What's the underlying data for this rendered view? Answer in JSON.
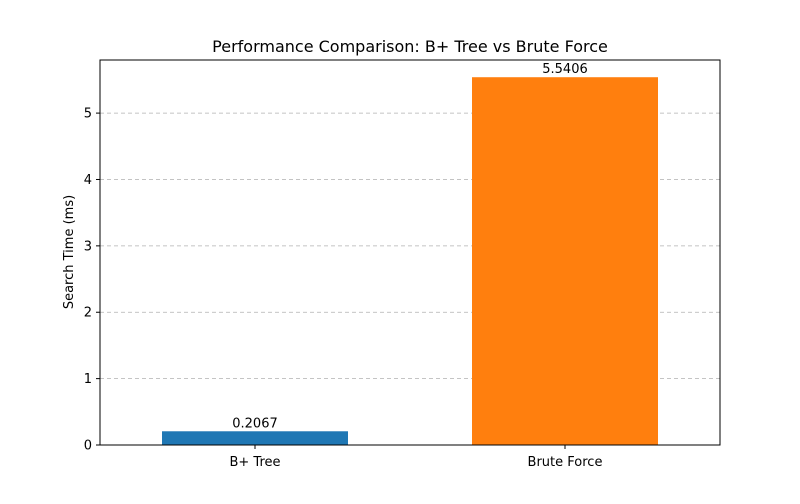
{
  "chart_data": {
    "type": "bar",
    "title": "Performance Comparison: B+ Tree vs Brute Force",
    "xlabel": "",
    "ylabel": "Search Time (ms)",
    "categories": [
      "B+ Tree",
      "Brute Force"
    ],
    "values": [
      0.2067,
      5.5406
    ],
    "value_labels": [
      "0.2067",
      "5.5406"
    ],
    "colors": [
      "#1f77b4",
      "#ff7f0e"
    ],
    "ylim": [
      0,
      5.8
    ],
    "yticks": [
      0,
      1,
      2,
      3,
      4,
      5
    ],
    "grid": {
      "y": true,
      "style": "dashed"
    },
    "legend": "none"
  }
}
